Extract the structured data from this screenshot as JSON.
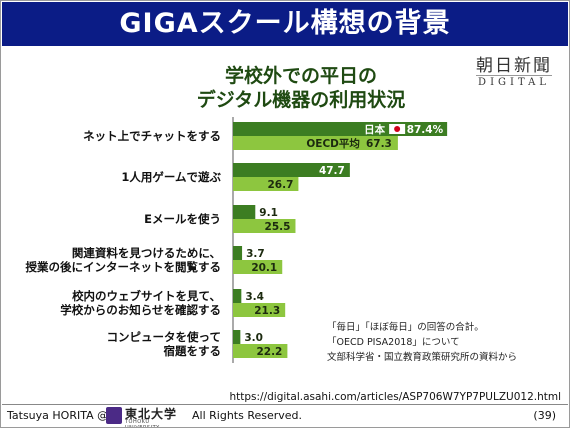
{
  "slide": {
    "title": "GIGAスクール構想の背景",
    "newspaper": {
      "name": "朝日新聞",
      "sub": "DIGITAL"
    },
    "note_lines": [
      "「毎日」「ほぼ毎日」の回答の合計。",
      "「OECD PISA2018」について",
      "文部科学省・国立教育政策研究所の資料から"
    ],
    "source_url": "https://digital.asahi.com/articles/ASP706W7YP7PULZU012.html",
    "footer": {
      "author": "Tatsuya HORITA @",
      "logo_text": "東北大学",
      "logo_sub": "TOHOKU UNIVERSITY",
      "rights": "All Rights Reserved.",
      "page": "(39)"
    }
  },
  "chart_data": {
    "type": "bar",
    "orientation": "horizontal",
    "title_lines": [
      "学校外での平日の",
      "デジタル機器の利用状況"
    ],
    "categories": [
      [
        "ネット上でチャットをする"
      ],
      [
        "1人用ゲームで遊ぶ"
      ],
      [
        "Eメールを使う"
      ],
      [
        "関連資料を見つけるために、",
        "授業の後にインターネットを閲覧する"
      ],
      [
        "校内のウェブサイトを見て、",
        "学校からのお知らせを確認する"
      ],
      [
        "コンピュータを使って",
        "宿題をする"
      ]
    ],
    "series": [
      {
        "name": "日本",
        "color": "#3c7d22",
        "values": [
          87.4,
          47.7,
          9.1,
          3.7,
          3.4,
          3.0
        ],
        "labels": [
          "87.4%",
          "47.7",
          "9.1",
          "3.7",
          "3.4",
          "3.0"
        ]
      },
      {
        "name": "OECD平均",
        "color": "#8dc63f",
        "values": [
          67.3,
          26.7,
          25.5,
          20.1,
          21.3,
          22.2
        ],
        "labels": [
          "67.3",
          "26.7",
          "25.5",
          "20.1",
          "21.3",
          "22.2"
        ]
      }
    ],
    "legend_placement": "inline on first bars",
    "unit": "%"
  }
}
